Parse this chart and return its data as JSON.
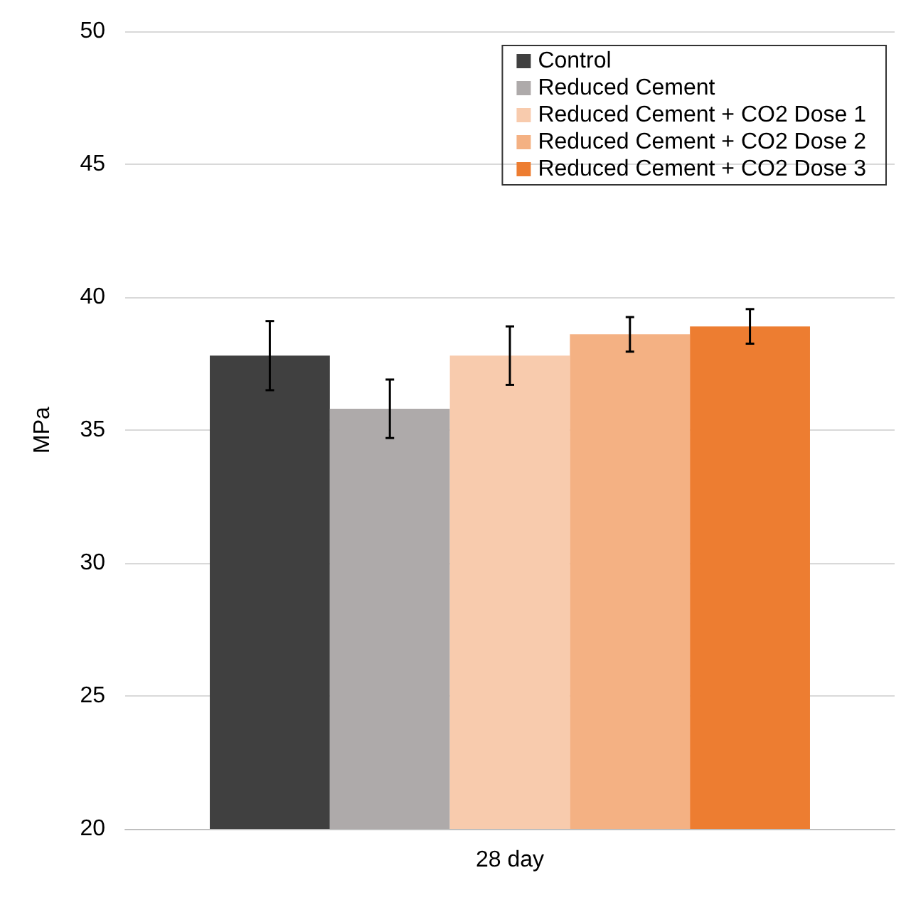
{
  "chart_data": {
    "type": "bar",
    "ylabel": "MPa",
    "categories": [
      "28 day"
    ],
    "series": [
      {
        "name": "Control",
        "color": "#404040",
        "values": [
          37.8
        ],
        "errors": [
          1.3
        ]
      },
      {
        "name": "Reduced Cement",
        "color": "#aeaaaa",
        "values": [
          35.8
        ],
        "errors": [
          1.1
        ]
      },
      {
        "name": "Reduced Cement + CO2 Dose 1",
        "color": "#f8cbad",
        "values": [
          37.8
        ],
        "errors": [
          1.1
        ]
      },
      {
        "name": "Reduced Cement + CO2 Dose 2",
        "color": "#f4b183",
        "values": [
          38.6
        ],
        "errors": [
          0.65
        ]
      },
      {
        "name": "Reduced Cement + CO2 Dose 3",
        "color": "#ed7d31",
        "values": [
          38.9
        ],
        "errors": [
          0.65
        ]
      }
    ],
    "ylim": [
      20,
      50
    ],
    "yticks": [
      20,
      25,
      30,
      35,
      40,
      45,
      50
    ],
    "grid": "y",
    "legend": "top right"
  }
}
